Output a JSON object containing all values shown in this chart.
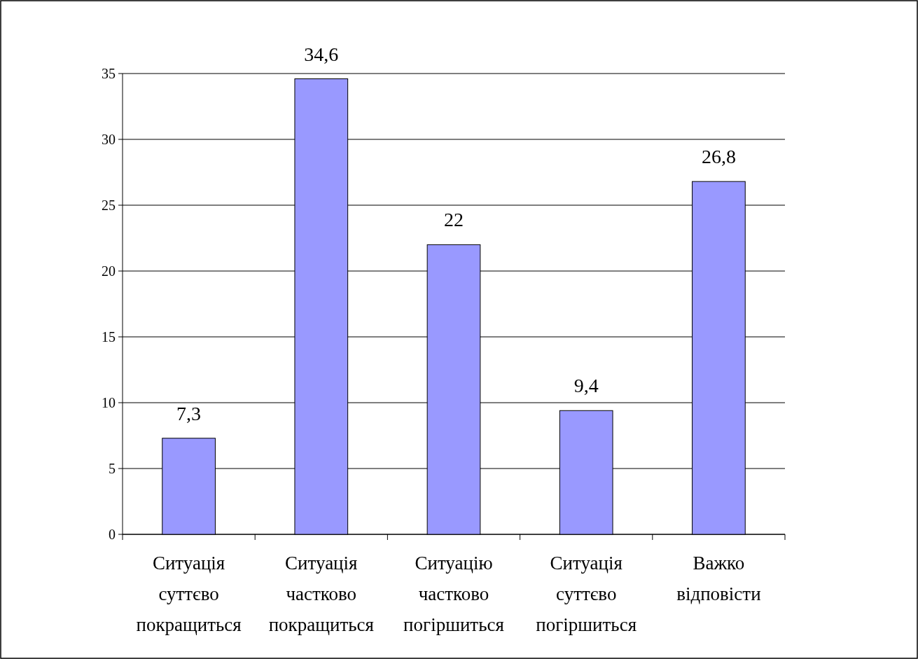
{
  "chart_data": {
    "type": "bar",
    "categories": [
      "Ситуація суттєво покращиться",
      "Ситуація частково покращиться",
      "Ситуацію частково погіршиться",
      "Ситуація суттєво погіршиться",
      "Важко відповісти"
    ],
    "values": [
      7.3,
      34.6,
      22,
      9.4,
      26.8
    ],
    "color": "#9999ff",
    "value_labels": [
      "7,3",
      "34,6",
      "22",
      "9,4",
      "26,8"
    ],
    "ylim": [
      0,
      35
    ],
    "yticks": [
      0,
      5,
      10,
      15,
      20,
      25,
      30,
      35
    ],
    "grid": "y"
  }
}
